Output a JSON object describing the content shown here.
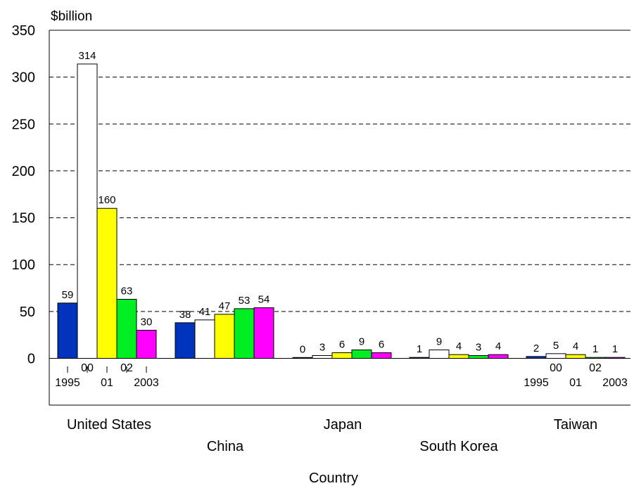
{
  "chart_data": {
    "type": "bar",
    "unit_label": "$billion",
    "xlabel": "Country",
    "ylim": [
      0,
      350
    ],
    "yticks": [
      0,
      50,
      100,
      150,
      200,
      250,
      300,
      350
    ],
    "grid": "dashed horizontal",
    "categories": [
      "United States",
      "China",
      "Japan",
      "South Korea",
      "Taiwan"
    ],
    "series": [
      {
        "year": "1995",
        "color": "#0033bb",
        "values": [
          59,
          38,
          0,
          1,
          2
        ]
      },
      {
        "year": "00",
        "color": "#ffffff",
        "values": [
          314,
          41,
          3,
          9,
          5
        ]
      },
      {
        "year": "01",
        "color": "#ffff00",
        "values": [
          160,
          47,
          6,
          4,
          4
        ]
      },
      {
        "year": "02",
        "color": "#00ee22",
        "values": [
          63,
          53,
          9,
          3,
          1
        ]
      },
      {
        "year": "2003",
        "color": "#ff00ff",
        "values": [
          30,
          54,
          6,
          4,
          1
        ]
      }
    ],
    "year_tick_labels": [
      "1995",
      "00",
      "01",
      "02",
      "2003"
    ]
  }
}
